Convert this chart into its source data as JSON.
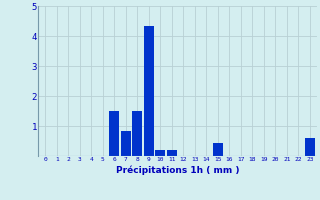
{
  "hours": [
    0,
    1,
    2,
    3,
    4,
    5,
    6,
    7,
    8,
    9,
    10,
    11,
    12,
    13,
    14,
    15,
    16,
    17,
    18,
    19,
    20,
    21,
    22,
    23
  ],
  "values": [
    0,
    0,
    0,
    0,
    0,
    0,
    1.5,
    0.85,
    1.5,
    4.35,
    0.2,
    0.2,
    0,
    0,
    0,
    0.45,
    0,
    0,
    0,
    0,
    0,
    0,
    0,
    0.6
  ],
  "bar_color": "#0033cc",
  "bg_color": "#d4eef0",
  "grid_color": "#b8d0d4",
  "xlabel": "Précipitations 1h ( mm )",
  "xlabel_color": "#0000bb",
  "tick_color": "#0000bb",
  "axis_color": "#7799aa",
  "ylim": [
    0,
    5
  ],
  "yticks": [
    0,
    1,
    2,
    3,
    4,
    5
  ],
  "bar_width": 0.85
}
